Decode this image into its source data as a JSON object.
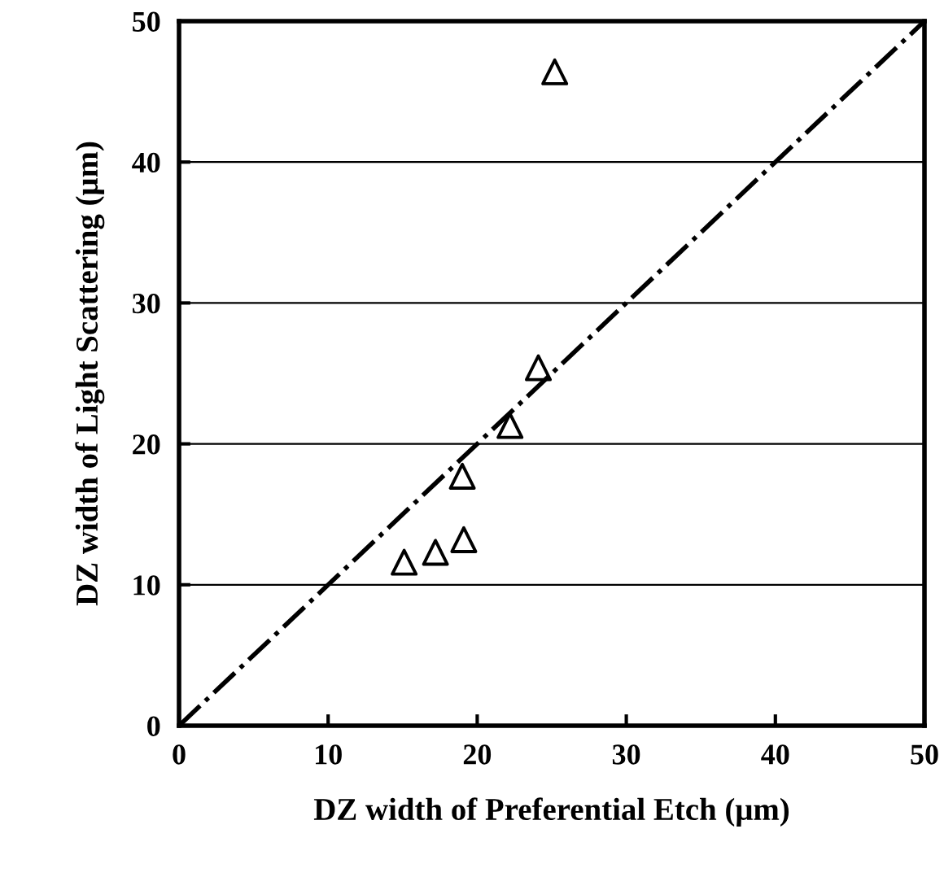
{
  "chart_data": {
    "type": "scatter",
    "xlabel": "DZ width of Preferential Etch (μm)",
    "ylabel": "DZ width of Light Scattering (μm)",
    "xlim": [
      0,
      50
    ],
    "ylim": [
      0,
      50
    ],
    "xticks": [
      0,
      10,
      20,
      30,
      40,
      50
    ],
    "yticks": [
      0,
      10,
      20,
      30,
      40,
      50
    ],
    "grid": "y",
    "marker": "triangle",
    "series": [
      {
        "color": "#000000",
        "x": [
          25.2,
          24.1,
          22.2,
          19.0,
          19.1,
          17.2,
          15.1
        ],
        "values": [
          46.4,
          25.4,
          21.3,
          17.7,
          13.2,
          12.3,
          11.6
        ]
      },
      {
        "type": "line",
        "color": "#000000",
        "line_style": "dashdot",
        "marker": "none",
        "x": [
          0,
          50
        ],
        "values": [
          0,
          50
        ]
      }
    ]
  }
}
